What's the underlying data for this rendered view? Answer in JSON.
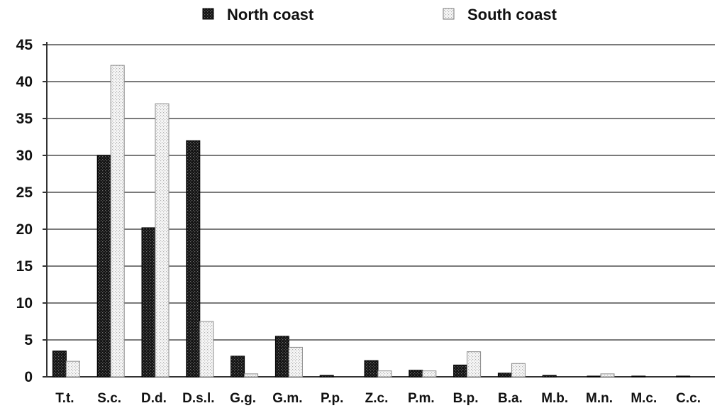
{
  "chart_data": {
    "type": "bar",
    "title": "",
    "xlabel": "",
    "ylabel": "",
    "ylim": [
      0,
      45
    ],
    "yticks": [
      0,
      5,
      10,
      15,
      20,
      25,
      30,
      35,
      40,
      45
    ],
    "grid": true,
    "legend_position": "top",
    "categories": [
      "T.t.",
      "S.c.",
      "D.d.",
      "D.s.l.",
      "G.g.",
      "G.m.",
      "P.p.",
      "Z.c.",
      "P.m.",
      "B.p.",
      "B.a.",
      "M.b.",
      "M.n.",
      "M.c.",
      "C.c."
    ],
    "series": [
      {
        "name": "North coast",
        "color": "#1a1a1a",
        "pattern": "dark-dotted",
        "values": [
          3.5,
          30,
          20.2,
          32,
          2.8,
          5.5,
          0.2,
          2.2,
          0.9,
          1.6,
          0.5,
          0.2,
          0.1,
          0.1,
          0.1
        ]
      },
      {
        "name": "South coast",
        "color": "#f2f2f2",
        "pattern": "light-dotted",
        "values": [
          2.1,
          42.2,
          37,
          7.5,
          0.4,
          4,
          0,
          0.8,
          0.8,
          3.4,
          1.8,
          0,
          0.4,
          0,
          0
        ]
      }
    ]
  }
}
